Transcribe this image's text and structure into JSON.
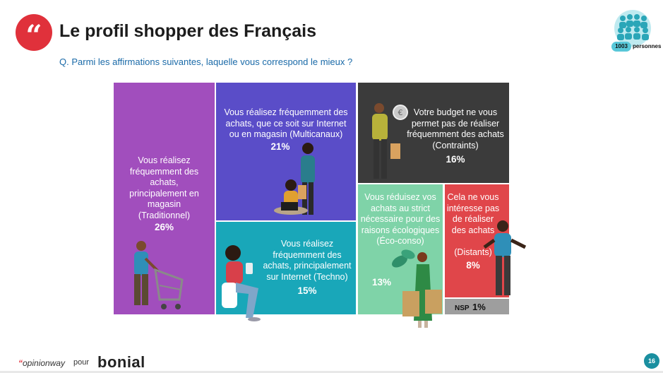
{
  "header": {
    "quote_glyph": "“",
    "title": "Le profil shopper des Français",
    "question": "Q. Parmi les affirmations suivantes, laquelle vous correspond le mieux ?",
    "sample_size": "1003",
    "sample_label": "personnes"
  },
  "chart_data": {
    "type": "treemap",
    "unit": "%",
    "segments": [
      {
        "key": "trad",
        "label": "Vous réalisez\nfréquemment des\nachats,\nprincipalement en\nmagasin\n(Traditionnel)",
        "pct_text": "26%",
        "value": 26,
        "color": "#a14ebd"
      },
      {
        "key": "multi",
        "label": "Vous réalisez fréquemment des\nachats, que ce soit sur Internet\nou en magasin (Multicanaux)",
        "pct_text": "21%",
        "value": 21,
        "color": "#5a4dc8"
      },
      {
        "key": "contr",
        "label": "Votre budget ne vous\npermet pas de réaliser\nfréquemment des achats\n(Contraints)",
        "pct_text": "16%",
        "value": 16,
        "color": "#3b3b3b"
      },
      {
        "key": "techno",
        "label": "Vous réalisez\nfréquemment des\nachats, principalement\nsur Internet (Techno)",
        "pct_text": "15%",
        "value": 15,
        "color": "#19a7b9"
      },
      {
        "key": "eco",
        "label": "Vous réduisez vos\nachats au strict\nnécessaire pour des\nraisons écologiques\n(Éco-conso)",
        "pct_text": "13%",
        "value": 13,
        "color": "#7fd3a8"
      },
      {
        "key": "dist",
        "label": "Cela ne vous\nintéresse pas\nde réaliser\ndes achats\n\n(Distants)",
        "pct_text": "8%",
        "value": 8,
        "color": "#e0464a"
      },
      {
        "key": "nsp",
        "label": "NSP",
        "pct_text": "1%",
        "value": 1,
        "color": "#9e9e9e"
      }
    ]
  },
  "footer": {
    "brand_quote": "“",
    "brand": "opinionway",
    "pour": "pour",
    "client": "bonial",
    "page": "16"
  }
}
